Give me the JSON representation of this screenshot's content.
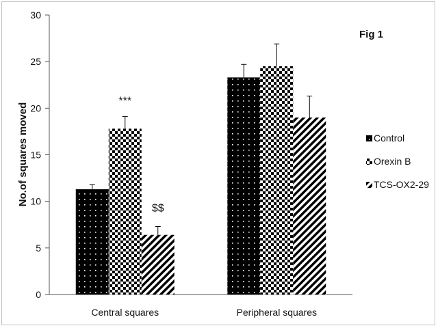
{
  "figure_label": "Fig 1",
  "chart_data": {
    "type": "bar",
    "title": "",
    "xlabel": "",
    "ylabel": "No.of squares moved",
    "ylim": [
      0,
      30
    ],
    "yticks": [
      0,
      5,
      10,
      15,
      20,
      25,
      30
    ],
    "categories": [
      "Central squares",
      "Peripheral squares"
    ],
    "series": [
      {
        "name": "Control",
        "values": [
          11.3,
          23.3
        ],
        "errors": [
          0.5,
          1.4
        ],
        "pattern": "black-dots",
        "color": "#000000"
      },
      {
        "name": "Orexin B",
        "values": [
          17.8,
          24.5
        ],
        "errors": [
          1.3,
          2.4
        ],
        "pattern": "checker",
        "color": "#000000"
      },
      {
        "name": "TCS-OX2-29",
        "values": [
          6.4,
          19.0
        ],
        "errors": [
          0.9,
          2.3
        ],
        "pattern": "diagonal-stripes",
        "color": "#000000"
      }
    ],
    "annotations": [
      {
        "text": "***",
        "category": 0,
        "series": 1
      },
      {
        "text": "$$",
        "category": 0,
        "series": 2
      }
    ],
    "grid": false,
    "legend_position": "right"
  }
}
